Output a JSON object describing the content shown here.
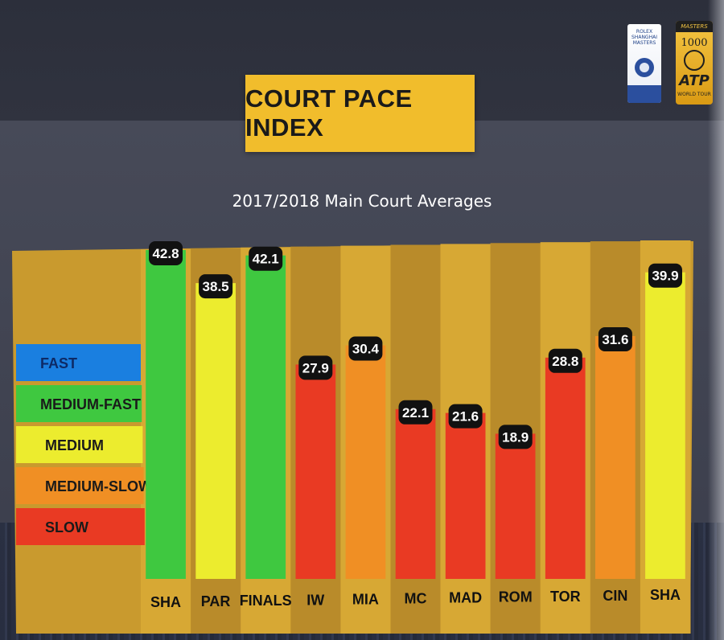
{
  "title": "COURT PACE INDEX",
  "subtitle": "2017/2018 Main Court Averages",
  "logos": {
    "shanghai": [
      "ROLEX",
      "SHANGHAI",
      "MASTERS"
    ],
    "atp": {
      "top": "MASTERS",
      "number": "1000",
      "wordmark": "ATP",
      "sub": "WORLD TOUR"
    }
  },
  "legend": [
    {
      "label": "FAST",
      "color": "#1a7fe0"
    },
    {
      "label": "MEDIUM-FAST",
      "color": "#3fc840"
    },
    {
      "label": "MEDIUM",
      "color": "#ecec2e"
    },
    {
      "label": "MEDIUM-SLOW",
      "color": "#f08f24"
    },
    {
      "label": "SLOW",
      "color": "#e93a23"
    }
  ],
  "colors": {
    "panel": "#c99a2e",
    "column_light": "#d7a834",
    "column_dark": "#b98b2a",
    "label_badge": "#111111"
  },
  "chart_data": {
    "type": "bar",
    "title": "COURT PACE INDEX",
    "subtitle": "2017/2018 Main Court Averages",
    "categories": [
      "SHA",
      "PAR",
      "FINALS",
      "IW",
      "MIA",
      "MC",
      "MAD",
      "ROM",
      "TOR",
      "CIN",
      "SHA"
    ],
    "values": [
      42.8,
      38.5,
      42.1,
      27.9,
      30.4,
      22.1,
      21.6,
      18.9,
      28.8,
      31.6,
      39.9
    ],
    "pace": [
      "MEDIUM-FAST",
      "MEDIUM",
      "MEDIUM-FAST",
      "SLOW",
      "MEDIUM-SLOW",
      "SLOW",
      "SLOW",
      "SLOW",
      "SLOW",
      "MEDIUM-SLOW",
      "MEDIUM"
    ],
    "data_labels": [
      "42.8",
      "38.5",
      "42.1",
      "27.9",
      "30.4",
      "22.1",
      "21.6",
      "18.9",
      "28.8",
      "31.6",
      "39.9"
    ],
    "xlabel": "",
    "ylabel": "",
    "ylim": [
      0,
      45
    ],
    "grid": false,
    "legend_position": "left"
  }
}
